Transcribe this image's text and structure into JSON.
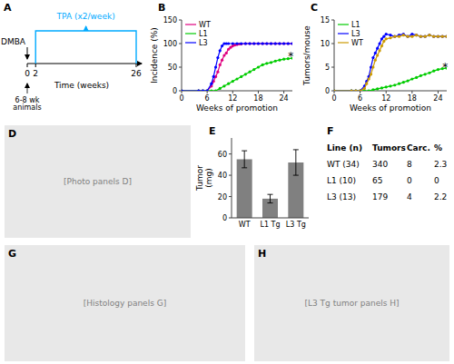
{
  "chart_data": [
    {
      "type": "timeline",
      "title": "A",
      "xlabel": "Time (weeks)",
      "xlim": [
        0,
        26
      ],
      "xticks": [
        0,
        2,
        26
      ],
      "events": [
        {
          "label": "DMBA",
          "x": 0
        },
        {
          "label": "TPA (x2/week)",
          "x": 2,
          "x_end": 26,
          "color": "#00aaff"
        }
      ],
      "annotations": [
        "6-8 wk\nanimals"
      ]
    },
    {
      "type": "line",
      "title": "B",
      "xlabel": "Weeks of promotion",
      "ylabel": "Incidence (%)",
      "xlim": [
        0,
        26
      ],
      "ylim": [
        0,
        150
      ],
      "xticks": [
        0,
        6,
        12,
        18,
        24
      ],
      "yticks": [
        0,
        50,
        100,
        150
      ],
      "legend": "upper left",
      "series": [
        {
          "name": "WT",
          "color": "#e0007f",
          "marker": "o",
          "x": [
            0,
            4,
            5,
            6,
            7,
            7.5,
            8,
            8.5,
            9,
            9.5,
            10,
            10.5,
            11,
            11.5,
            12,
            12.5,
            13,
            13.5,
            14,
            15,
            16,
            17,
            18,
            19,
            20,
            21,
            22,
            23,
            24,
            25,
            26
          ],
          "values": [
            0,
            0,
            0,
            0,
            10,
            20,
            30,
            40,
            55,
            65,
            75,
            80,
            88,
            92,
            95,
            97,
            98,
            99,
            99,
            100,
            100,
            100,
            100,
            100,
            100,
            100,
            100,
            100,
            100,
            100,
            100
          ]
        },
        {
          "name": "L1",
          "color": "#00cc00",
          "marker": "o",
          "x": [
            0,
            4,
            5,
            6,
            7,
            8,
            9,
            10,
            11,
            12,
            13,
            14,
            15,
            16,
            17,
            18,
            19,
            20,
            21,
            22,
            23,
            24,
            25,
            26
          ],
          "values": [
            0,
            0,
            0,
            0,
            0,
            0,
            5,
            10,
            15,
            20,
            25,
            30,
            35,
            40,
            45,
            50,
            55,
            58,
            60,
            63,
            65,
            67,
            68,
            69
          ]
        },
        {
          "name": "L3",
          "color": "#0000ff",
          "marker": "o",
          "x": [
            0,
            4,
            5,
            6,
            7,
            7.5,
            8,
            8.5,
            9,
            9.5,
            10,
            10.5,
            11,
            12,
            13,
            14,
            15,
            16,
            17,
            18,
            19,
            20,
            21,
            22,
            23,
            24,
            25,
            26
          ],
          "values": [
            0,
            0,
            0,
            0,
            15,
            30,
            50,
            70,
            85,
            95,
            100,
            100,
            100,
            100,
            100,
            100,
            100,
            100,
            100,
            100,
            100,
            100,
            100,
            100,
            100,
            100,
            100,
            100
          ]
        }
      ],
      "annotations": [
        {
          "text": "*",
          "x": 25,
          "y": 65
        }
      ]
    },
    {
      "type": "line",
      "title": "C",
      "xlabel": "Weeks of promotion",
      "ylabel": "Tumors/mouse",
      "xlim": [
        0,
        26
      ],
      "ylim": [
        0,
        15
      ],
      "xticks": [
        0,
        6,
        12,
        18,
        24
      ],
      "yticks": [
        0,
        5,
        10,
        15
      ],
      "legend": "upper left",
      "series": [
        {
          "name": "L1",
          "color": "#00cc00",
          "marker": "o",
          "x": [
            0,
            4,
            5,
            6,
            7,
            8,
            9,
            10,
            11,
            12,
            13,
            14,
            15,
            16,
            17,
            18,
            19,
            20,
            21,
            22,
            23,
            24,
            25,
            26
          ],
          "values": [
            0,
            0,
            0,
            0,
            0,
            0,
            0.2,
            0.4,
            0.6,
            0.8,
            1.0,
            1.2,
            1.5,
            1.8,
            2.1,
            2.5,
            2.8,
            3.2,
            3.5,
            3.8,
            4.2,
            4.5,
            4.7,
            4.8
          ]
        },
        {
          "name": "L3",
          "color": "#0000ff",
          "marker": "o",
          "x": [
            0,
            4,
            5,
            6,
            7,
            7.5,
            8,
            8.5,
            9,
            9.5,
            10,
            10.5,
            11,
            11.5,
            12,
            13,
            14,
            15,
            16,
            17,
            18,
            19,
            20,
            21,
            22,
            23,
            24,
            25,
            26
          ],
          "values": [
            0,
            0,
            0,
            0,
            1,
            2,
            3,
            5,
            7,
            8,
            9,
            10,
            11,
            11.5,
            12,
            11.8,
            11.5,
            11.8,
            12,
            11.5,
            12,
            11.8,
            11.5,
            11.5,
            11.8,
            11.5,
            11.5,
            11.5,
            11.5
          ]
        },
        {
          "name": "WT",
          "color": "#cc9900",
          "marker": "o",
          "x": [
            0,
            4,
            5,
            6,
            7,
            7.5,
            8,
            8.5,
            9,
            9.5,
            10,
            10.5,
            11,
            11.5,
            12,
            13,
            14,
            15,
            16,
            17,
            18,
            19,
            20,
            21,
            22,
            23,
            24,
            25,
            26
          ],
          "values": [
            0,
            0,
            0,
            0,
            0.5,
            1.5,
            2.5,
            3.5,
            5,
            6.5,
            7.5,
            8.5,
            9.5,
            10.5,
            11,
            11.2,
            11.5,
            11.5,
            11.8,
            11.5,
            11.5,
            11.8,
            11.5,
            11.5,
            11.8,
            11.5,
            11.5,
            11.5,
            11.5
          ]
        }
      ],
      "annotations": [
        {
          "text": "*",
          "x": 25,
          "y": 4.2
        }
      ]
    },
    {
      "type": "placeholder",
      "title": "D",
      "annotations": [
        "[Photo panels D]"
      ]
    },
    {
      "type": "bar",
      "title": "E",
      "ylabel": "Tumor\n(mg)",
      "categories": [
        "WT",
        "L1 Tg",
        "L3 Tg"
      ],
      "values": [
        55,
        18,
        52
      ],
      "errors": [
        8,
        4,
        12
      ],
      "color": "#808080",
      "ylim": [
        0,
        75
      ],
      "yticks": [
        0,
        20,
        40,
        60
      ]
    },
    {
      "type": "table",
      "title": "F",
      "headers": [
        "Line (n)",
        "Tumors",
        "Carc.",
        "%"
      ],
      "rows": [
        [
          "WT (34)",
          "340",
          "8",
          "2.3"
        ],
        [
          "L1 (10)",
          "65",
          "0",
          "0"
        ],
        [
          "L3 (13)",
          "179",
          "4",
          "2.2"
        ]
      ]
    },
    {
      "type": "placeholder",
      "title": "G",
      "annotations": [
        "[Histology panels G]"
      ]
    },
    {
      "type": "placeholder",
      "title": "H",
      "annotations": [
        "[L3 Tg tumor panels H]"
      ]
    }
  ]
}
